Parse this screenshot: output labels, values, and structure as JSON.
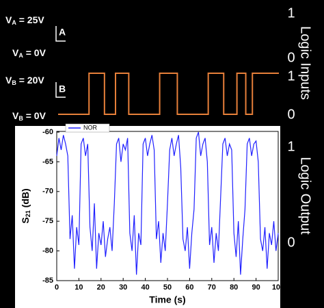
{
  "chart_data": [
    {
      "type": "step",
      "labels": [
        {
          "base": "V",
          "sub": "A",
          "rest": " = 25V"
        },
        {
          "base": "V",
          "sub": "A",
          "rest": " = 0V"
        },
        {
          "base": "V",
          "sub": "B",
          "rest": " = 20V"
        },
        {
          "base": "V",
          "sub": "B",
          "rest": " = 0V"
        }
      ],
      "markers": [
        "A",
        "B"
      ],
      "right_labels": [
        "1",
        "0",
        "1",
        "0"
      ],
      "axis_title": "Logic Inputs",
      "xlim": [
        0,
        100
      ],
      "ylim": [
        0,
        1
      ],
      "series": [
        {
          "color": "#e8803a",
          "x": [
            0,
            14,
            14,
            21,
            21,
            26,
            26,
            32,
            32,
            46,
            46,
            54,
            54,
            68,
            68,
            75,
            75,
            81,
            81,
            85,
            85,
            88,
            88,
            100
          ],
          "values": [
            0,
            0,
            1,
            1,
            0,
            0,
            1,
            1,
            0,
            0,
            1,
            1,
            0,
            0,
            1,
            1,
            0,
            0,
            1,
            1,
            0,
            0,
            1,
            1
          ]
        }
      ]
    },
    {
      "type": "line",
      "xlabel": "Time (s)",
      "ylabel": {
        "base": "S",
        "sub": "21",
        "rest": " (dB)"
      },
      "right_labels": [
        "1",
        "0"
      ],
      "axis_title": "Logic Output",
      "xlim": [
        0,
        100
      ],
      "ylim": [
        -85,
        -60
      ],
      "xticks": [
        0,
        10,
        20,
        30,
        40,
        50,
        60,
        70,
        80,
        90,
        100
      ],
      "yticks": [
        -85,
        -80,
        -75,
        -70,
        -65,
        -60
      ],
      "series": [
        {
          "name": "NOR",
          "color": "#1f1fff",
          "x": [
            0,
            1,
            2,
            3,
            4,
            5,
            6,
            7,
            8,
            9,
            10,
            11,
            12,
            13,
            14,
            15,
            16,
            17,
            18,
            19,
            20,
            21,
            22,
            23,
            24,
            25,
            26,
            27,
            28,
            29,
            30,
            31,
            32,
            33,
            34,
            35,
            36,
            37,
            38,
            39,
            40,
            41,
            42,
            43,
            44,
            45,
            46,
            47,
            48,
            49,
            50,
            51,
            52,
            53,
            54,
            55,
            56,
            57,
            58,
            59,
            60,
            61,
            62,
            63,
            64,
            65,
            66,
            67,
            68,
            69,
            70,
            71,
            72,
            73,
            74,
            75,
            76,
            77,
            78,
            79,
            80,
            81,
            82,
            83,
            84,
            85,
            86,
            87,
            88,
            89,
            90,
            91,
            92,
            93,
            94,
            95,
            96,
            97,
            98,
            99,
            100
          ],
          "values": [
            -64,
            -61,
            -63,
            -60.5,
            -62,
            -64,
            -78,
            -74,
            -83,
            -76,
            -79,
            -62,
            -61,
            -64,
            -62,
            -76,
            -80,
            -72,
            -83,
            -77,
            -79,
            -75,
            -81,
            -78,
            -76,
            -80,
            -72,
            -62,
            -61,
            -65,
            -62,
            -63,
            -61,
            -77,
            -80,
            -74,
            -84,
            -77,
            -79,
            -62,
            -61,
            -64,
            -62,
            -60.5,
            -63,
            -78,
            -75,
            -82,
            -77,
            -80,
            -72,
            -63,
            -61,
            -64,
            -62,
            -60.5,
            -66,
            -78,
            -80,
            -76,
            -83,
            -77,
            -73,
            -61,
            -60,
            -64,
            -62,
            -61,
            -65,
            -79,
            -76,
            -82,
            -77,
            -80,
            -71,
            -62,
            -61,
            -64,
            -62,
            -63,
            -77,
            -81,
            -75,
            -84,
            -78,
            -73,
            -62,
            -61,
            -64,
            -62,
            -61.5,
            -65,
            -78,
            -80,
            -76,
            -83,
            -77,
            -79,
            -75,
            -80,
            -77
          ]
        }
      ]
    }
  ]
}
